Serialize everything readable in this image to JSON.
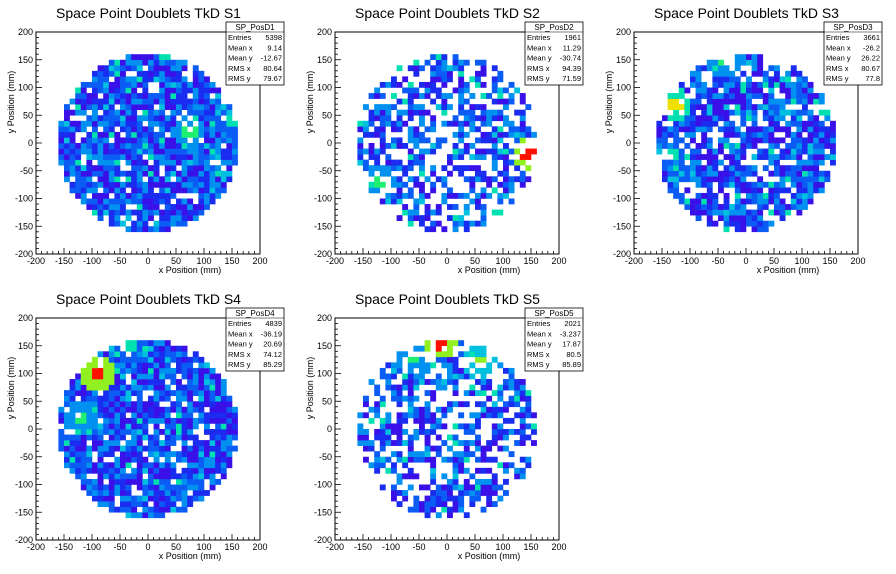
{
  "colors": {
    "palette": [
      "#7b00d6",
      "#3a10e8",
      "#1a2cf0",
      "#0a5cf5",
      "#0090f0",
      "#00c0e0",
      "#00e0b0",
      "#20f070",
      "#90f020",
      "#f0e000",
      "#ff8000",
      "#ff1000"
    ]
  },
  "chart_data": [
    {
      "type": "heatmap",
      "title": "Space Point Doublets TkD S1",
      "xlabel": "x Position (mm)",
      "ylabel": "y Position (mm)",
      "xlim": [
        -200,
        200
      ],
      "ylim": [
        -200,
        200
      ],
      "xticks": [
        -200,
        -150,
        -100,
        -50,
        0,
        50,
        100,
        150,
        200
      ],
      "yticks": [
        -200,
        -150,
        -100,
        -50,
        0,
        50,
        100,
        150,
        200
      ],
      "stats_name": "SP_PosD1",
      "stats": [
        {
          "label": "Entries",
          "value": "5398"
        },
        {
          "label": "Mean x",
          "value": "9.14"
        },
        {
          "label": "Mean y",
          "value": "-12.67"
        },
        {
          "label": "RMS x",
          "value": "80.64"
        },
        {
          "label": "RMS y",
          "value": "79.67"
        }
      ],
      "entries": 5398,
      "radius_mm": 160,
      "hotspots": [
        {
          "x": 75,
          "y": 20,
          "level": 7
        },
        {
          "x": 150,
          "y": 40,
          "level": 6
        },
        {
          "x": -40,
          "y": -140,
          "level": 5
        }
      ]
    },
    {
      "type": "heatmap",
      "title": "Space Point Doublets TkD S2",
      "xlabel": "x Position (mm)",
      "ylabel": "y Position (mm)",
      "xlim": [
        -200,
        200
      ],
      "ylim": [
        -200,
        200
      ],
      "xticks": [
        -200,
        -150,
        -100,
        -50,
        0,
        50,
        100,
        150,
        200
      ],
      "yticks": [
        -200,
        -150,
        -100,
        -50,
        0,
        50,
        100,
        150,
        200
      ],
      "stats_name": "SP_PosD2",
      "stats": [
        {
          "label": "Entries",
          "value": "1961"
        },
        {
          "label": "Mean x",
          "value": "11.29"
        },
        {
          "label": "Mean y",
          "value": "-30.74"
        },
        {
          "label": "RMS x",
          "value": "94.39"
        },
        {
          "label": "RMS y",
          "value": "71.59"
        }
      ],
      "entries": 1961,
      "radius_mm": 160,
      "hotspots": [
        {
          "x": 145,
          "y": -20,
          "level": 11
        },
        {
          "x": -120,
          "y": -70,
          "level": 7
        },
        {
          "x": 100,
          "y": -120,
          "level": 6
        }
      ]
    },
    {
      "type": "heatmap",
      "title": "Space Point Doublets TkD S3",
      "xlabel": "x Position (mm)",
      "ylabel": "y Position (mm)",
      "xlim": [
        -200,
        200
      ],
      "ylim": [
        -200,
        200
      ],
      "xticks": [
        -200,
        -150,
        -100,
        -50,
        0,
        50,
        100,
        150,
        200
      ],
      "yticks": [
        -200,
        -150,
        -100,
        -50,
        0,
        50,
        100,
        150,
        200
      ],
      "stats_name": "SP_PosD3",
      "stats": [
        {
          "label": "Entries",
          "value": "3661"
        },
        {
          "label": "Mean x",
          "value": "-26.2"
        },
        {
          "label": "Mean y",
          "value": "26.22"
        },
        {
          "label": "RMS x",
          "value": "80.67"
        },
        {
          "label": "RMS y",
          "value": "77.8"
        }
      ],
      "entries": 3661,
      "radius_mm": 160,
      "hotspots": [
        {
          "x": -125,
          "y": 70,
          "level": 9
        },
        {
          "x": -40,
          "y": 150,
          "level": 7
        },
        {
          "x": -130,
          "y": -20,
          "level": 6
        }
      ]
    },
    {
      "type": "heatmap",
      "title": "Space Point Doublets TkD S4",
      "xlabel": "x Position (mm)",
      "ylabel": "y Position (mm)",
      "xlim": [
        -200,
        200
      ],
      "ylim": [
        -200,
        200
      ],
      "xticks": [
        -200,
        -150,
        -100,
        -50,
        0,
        50,
        100,
        150,
        200
      ],
      "yticks": [
        -200,
        -150,
        -100,
        -50,
        0,
        50,
        100,
        150,
        200
      ],
      "stats_name": "SP_PosD4",
      "stats": [
        {
          "label": "Entries",
          "value": "4839"
        },
        {
          "label": "Mean x",
          "value": "-36.19"
        },
        {
          "label": "Mean y",
          "value": "20.69"
        },
        {
          "label": "RMS x",
          "value": "74.12"
        },
        {
          "label": "RMS y",
          "value": "85.29"
        }
      ],
      "entries": 4839,
      "radius_mm": 160,
      "hotspots": [
        {
          "x": -90,
          "y": 100,
          "level": 11
        },
        {
          "x": -120,
          "y": 20,
          "level": 7
        },
        {
          "x": -30,
          "y": 150,
          "level": 6
        }
      ]
    },
    {
      "type": "heatmap",
      "title": "Space Point Doublets TkD S5",
      "xlabel": "x Position (mm)",
      "ylabel": "y Position (mm)",
      "xlim": [
        -200,
        200
      ],
      "ylim": [
        -200,
        200
      ],
      "xticks": [
        -200,
        -150,
        -100,
        -50,
        0,
        50,
        100,
        150,
        200
      ],
      "yticks": [
        -200,
        -150,
        -100,
        -50,
        0,
        50,
        100,
        150,
        200
      ],
      "stats_name": "SP_PosD5",
      "stats": [
        {
          "label": "Entries",
          "value": "2021"
        },
        {
          "label": "Mean x",
          "value": "-3.237"
        },
        {
          "label": "Mean y",
          "value": "17.87"
        },
        {
          "label": "RMS x",
          "value": "80.5"
        },
        {
          "label": "RMS y",
          "value": "85.89"
        }
      ],
      "entries": 2021,
      "radius_mm": 160,
      "hotspots": [
        {
          "x": -10,
          "y": 155,
          "level": 11
        },
        {
          "x": 60,
          "y": 120,
          "level": 8
        },
        {
          "x": -60,
          "y": 130,
          "level": 7
        }
      ]
    }
  ]
}
